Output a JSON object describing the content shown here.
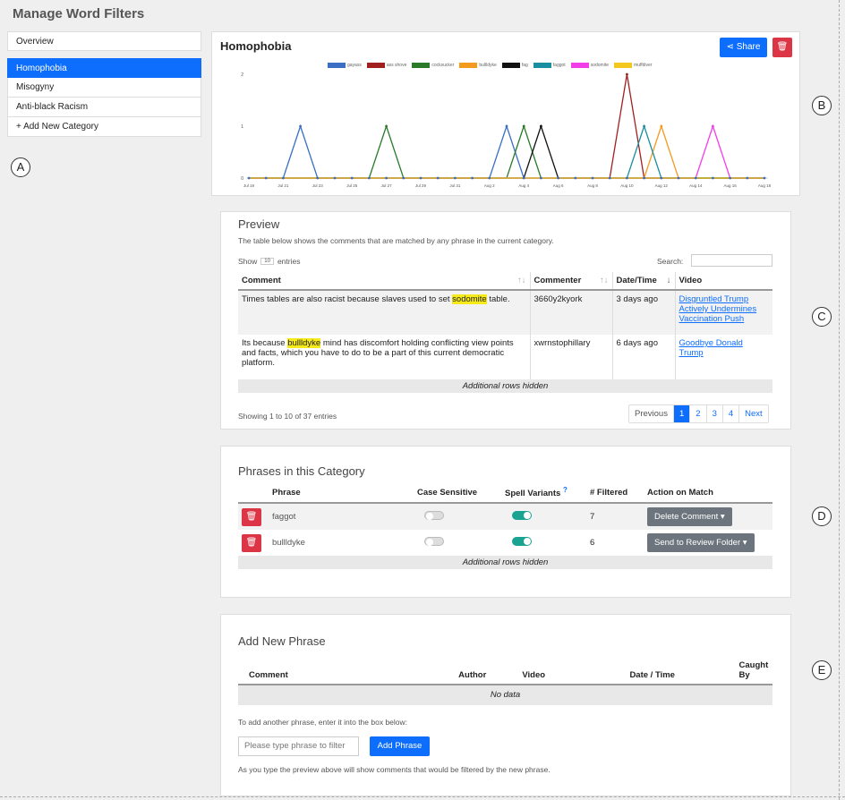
{
  "page_title": "Manage Word Filters",
  "sidebar": {
    "items": [
      {
        "label": "Overview"
      },
      {
        "label": "Homophobia"
      },
      {
        "label": "Misogyny"
      },
      {
        "label": "Anti-black Racism"
      },
      {
        "label": "+ Add New Category"
      }
    ]
  },
  "region_labels": [
    "A",
    "B",
    "C",
    "D",
    "E"
  ],
  "chart_panel": {
    "title": "Homophobia",
    "share_label": "Share"
  },
  "chart_data": {
    "type": "line",
    "x": [
      "Jul 19",
      "Jul 20",
      "Jul 21",
      "Jul 22",
      "Jul 23",
      "Jul 24",
      "Jul 25",
      "Jul 26",
      "Jul 27",
      "Jul 28",
      "Jul 29",
      "Jul 30",
      "Jul 31",
      "Aug 1",
      "Aug 2",
      "Aug 3",
      "Aug 4",
      "Aug 5",
      "Aug 6",
      "Aug 7",
      "Aug 8",
      "Aug 9",
      "Aug 10",
      "Aug 11",
      "Aug 12",
      "Aug 13",
      "Aug 14",
      "Aug 15",
      "Aug 16",
      "Aug 17",
      "Aug 18"
    ],
    "tick_labels": [
      "Jul 19",
      "Jul 21",
      "Jul 23",
      "Jul 25",
      "Jul 27",
      "Jul 29",
      "Jul 31",
      "Aug 2",
      "Aug 4",
      "Aug 6",
      "Aug 8",
      "Aug 10",
      "Aug 12",
      "Aug 14",
      "Aug 16",
      "Aug 18"
    ],
    "ylim": [
      0,
      2
    ],
    "y_ticks": [
      "2",
      "1",
      "0"
    ],
    "series": [
      {
        "name": "gayass",
        "color": "#3a6fc4",
        "values": [
          0,
          0,
          0,
          1,
          0,
          0,
          0,
          0,
          0,
          0,
          0,
          0,
          0,
          0,
          0,
          1,
          0,
          0,
          0,
          0,
          0,
          0,
          0,
          0,
          0,
          0,
          0,
          0,
          0,
          0,
          0
        ]
      },
      {
        "name": "ass shove",
        "color": "#a11f1f",
        "values": [
          0,
          0,
          0,
          0,
          0,
          0,
          0,
          0,
          0,
          0,
          0,
          0,
          0,
          0,
          0,
          0,
          0,
          0,
          0,
          0,
          0,
          0,
          2,
          0,
          0,
          0,
          0,
          0,
          0,
          0,
          0
        ]
      },
      {
        "name": "cocksucker",
        "color": "#2a7a2a",
        "values": [
          0,
          0,
          0,
          0,
          0,
          0,
          0,
          0,
          1,
          0,
          0,
          0,
          0,
          0,
          0,
          0,
          1,
          0,
          0,
          0,
          0,
          0,
          0,
          0,
          0,
          0,
          0,
          0,
          0,
          0,
          0
        ]
      },
      {
        "name": "bullldyke",
        "color": "#f49a1f",
        "values": [
          0,
          0,
          0,
          0,
          0,
          0,
          0,
          0,
          0,
          0,
          0,
          0,
          0,
          0,
          0,
          0,
          0,
          0,
          0,
          0,
          0,
          0,
          0,
          0,
          1,
          0,
          0,
          0,
          0,
          0,
          0
        ]
      },
      {
        "name": "fag",
        "color": "#111111",
        "values": [
          0,
          0,
          0,
          0,
          0,
          0,
          0,
          0,
          0,
          0,
          0,
          0,
          0,
          0,
          0,
          0,
          0,
          1,
          0,
          0,
          0,
          0,
          0,
          0,
          0,
          0,
          0,
          0,
          0,
          0,
          0
        ]
      },
      {
        "name": "faggot",
        "color": "#1a8fa0",
        "values": [
          0,
          0,
          0,
          0,
          0,
          0,
          0,
          0,
          0,
          0,
          0,
          0,
          0,
          0,
          0,
          0,
          0,
          0,
          0,
          0,
          0,
          0,
          0,
          1,
          0,
          0,
          0,
          0,
          0,
          0,
          0
        ]
      },
      {
        "name": "sodomite",
        "color": "#f23ee8",
        "values": [
          0,
          0,
          0,
          0,
          0,
          0,
          0,
          0,
          0,
          0,
          0,
          0,
          0,
          0,
          0,
          0,
          0,
          0,
          0,
          0,
          0,
          0,
          0,
          0,
          0,
          0,
          0,
          1,
          0,
          0,
          0
        ]
      },
      {
        "name": "muffdiver",
        "color": "#f4c81f",
        "values": [
          0,
          0,
          0,
          0,
          0,
          0,
          0,
          0,
          0,
          0,
          0,
          0,
          0,
          0,
          0,
          0,
          0,
          0,
          0,
          0,
          0,
          0,
          0,
          0,
          0,
          0,
          0,
          0,
          0,
          0,
          0
        ]
      }
    ],
    "legend_position": "top-center",
    "grid": false
  },
  "preview": {
    "title": "Preview",
    "description": "The table below shows the comments that are matched by any phrase in the current category.",
    "show_label": "Show",
    "entries_value": "10",
    "entries_label": "entries",
    "search_label": "Search:",
    "columns": [
      "Comment",
      "Commenter",
      "Date/Time",
      "Video"
    ],
    "sort_icons": [
      "↑↓",
      "↑↓",
      "↓"
    ],
    "rows": [
      {
        "before": "Times tables are also racist because slaves used to set ",
        "match": "sodomite",
        "after": " table.",
        "commenter": "3660y2kyork",
        "date": "3 days ago",
        "video": "Disgruntled Trump Actively Undermines Vaccination Push"
      },
      {
        "before": "Its because ",
        "match": "bullldyke",
        "after": " mind has discomfort holding conflicting view points and facts, which you have to do to be a part of this current democratic platform.",
        "commenter": "xwrnstophillary",
        "date": "6 days ago",
        "video": "Goodbye Donald Trump"
      }
    ],
    "hidden_rows": "Additional rows hidden",
    "showing": "Showing 1 to 10 of 37 entries",
    "pager": {
      "prev": "Previous",
      "pages": [
        "1",
        "2",
        "3",
        "4"
      ],
      "next": "Next"
    }
  },
  "phrases": {
    "title": "Phrases in this Category",
    "columns": [
      "Phrase",
      "Case Sensitive",
      "Spell Variants",
      "# Filtered",
      "Action on Match"
    ],
    "info_mark": "?",
    "rows": [
      {
        "phrase": "faggot",
        "case_sensitive": false,
        "spell_variants": true,
        "filtered": "7",
        "action": "Delete Comment"
      },
      {
        "phrase": "bullldyke",
        "case_sensitive": false,
        "spell_variants": true,
        "filtered": "6",
        "action": "Send to Review Folder"
      }
    ],
    "hidden_rows": "Additional rows hidden"
  },
  "add_phrase": {
    "title": "Add New Phrase",
    "columns": [
      "Comment",
      "Author",
      "Video",
      "Date / Time",
      "Caught By"
    ],
    "no_data": "No data",
    "instruction": "To add another phrase, enter it into the box below:",
    "placeholder": "Please type phrase to filter",
    "button_label": "Add Phrase",
    "footnote": "As you type the preview above will show comments that would be filtered by the new phrase."
  }
}
